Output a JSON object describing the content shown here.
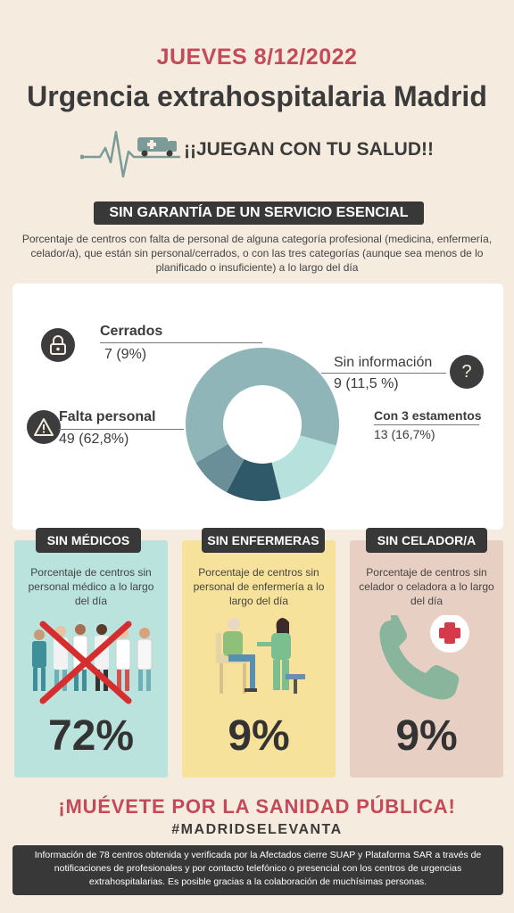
{
  "header": {
    "date": "JUEVES 8/12/2022",
    "title": "Urgencia extrahospitalaria Madrid",
    "slogan": "¡¡JUEGAN CON TU SALUD!!"
  },
  "section": {
    "banner": "SIN GARANTÍA DE UN SERVICIO  ESENCIAL",
    "description": "Porcentaje de centros con falta de personal de alguna categoría profesional (medicina, enfermería, celador/a), que están sin personal/cerrados, o con las tres categorías (aunque sea menos de lo planificado o insuficiente) a lo largo del día"
  },
  "chart_data": [
    {
      "type": "pie",
      "variant": "donut",
      "categories": [
        "Falta personal",
        "Con 3 estamentos",
        "Sin información",
        "Cerrados"
      ],
      "values": [
        49,
        13,
        9,
        7
      ],
      "labels": [
        "49 (62,8%)",
        "13 (16,7%)",
        "9 (11,5 %)",
        "7 (9%)"
      ],
      "colors": [
        "#8fb5b8",
        "#b7e1dc",
        "#2f5868",
        "#6a8f99"
      ],
      "icons": [
        "warning-icon",
        "",
        "question-icon",
        "lock-icon"
      ]
    },
    {
      "type": "bar",
      "categories": [
        "SIN MÉDICOS",
        "SIN ENFERMERAS",
        "SIN CELADOR/A"
      ],
      "values": [
        72,
        9,
        9
      ],
      "unit": "%",
      "labels": [
        "72%",
        "9%",
        "9%"
      ],
      "descriptions": [
        "Porcentaje de centros sin personal médico a lo largo del día",
        "Porcentaje de centros sin personal de enfermería a lo largo del día",
        "Porcentaje de centros sin celador o celadora a lo largo del día"
      ],
      "colors": [
        "#b9e3dc",
        "#f7e29c",
        "#e8cfc3"
      ]
    }
  ],
  "cta": {
    "text": "¡MUÉVETE POR LA SANIDAD PÚBLICA!",
    "hashtag": "#MADRIDSELEVANTA"
  },
  "footer": {
    "text": "Información de 78 centros obtenida y verificada por la Afectados cierre SUAP y Plataforma SAR a través de notificaciones de profesionales y por contacto telefónico o presencial con los centros de urgencias extrahospitalarias. Es posible gracias a la colaboración de muchísimas personas."
  }
}
